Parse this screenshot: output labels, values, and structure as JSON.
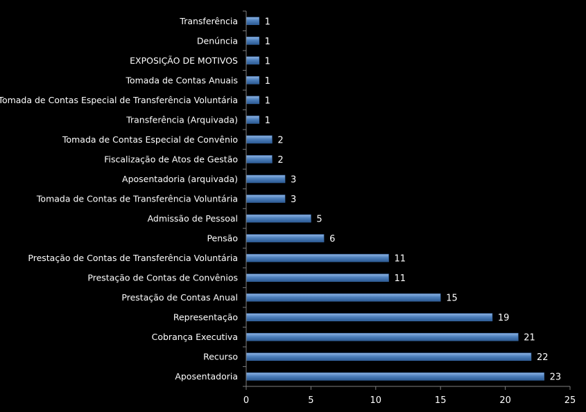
{
  "chart_data": {
    "type": "bar",
    "orientation": "horizontal",
    "categories": [
      "Transferência",
      "Denúncia",
      "EXPOSIÇÃO DE MOTIVOS",
      "Tomada de Contas Anuais",
      "Tomada de Contas Especial de Transferência Voluntária",
      "Transferência (Arquivada)",
      "Tomada de Contas Especial de Convênio",
      "Fiscalização de Atos de Gestão",
      "Aposentadoria (arquivada)",
      "Tomada de Contas de Transferência Voluntária",
      "Admissão de Pessoal",
      "Pensão",
      "Prestação de Contas de Transferência Voluntária",
      "Prestação de Contas de Convênios",
      "Prestação de Contas Anual",
      "Representação",
      "Cobrança Executiva",
      "Recurso",
      "Aposentadoria"
    ],
    "values": [
      1,
      1,
      1,
      1,
      1,
      1,
      2,
      2,
      3,
      3,
      5,
      6,
      11,
      11,
      15,
      19,
      21,
      22,
      23
    ],
    "xlim": [
      0,
      25
    ],
    "xticks": [
      0,
      5,
      10,
      15,
      20,
      25
    ],
    "bar_color": "#4f81bd",
    "background": "#000000",
    "text_color": "#ffffff",
    "grid": false,
    "legend": "none"
  }
}
